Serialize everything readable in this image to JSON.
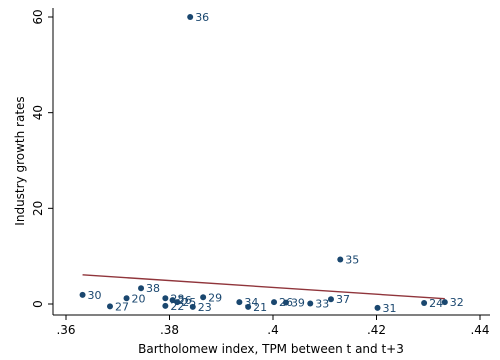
{
  "chart_data": {
    "type": "scatter",
    "title": "",
    "xlabel": "Bartholomew index, TPM  between t and t+3",
    "ylabel": "Industry growth rates",
    "xlim": [
      0.36,
      0.44
    ],
    "ylim": [
      -2,
      62
    ],
    "xticks": [
      0.36,
      0.38,
      0.4,
      0.42,
      0.44
    ],
    "xtick_labels": [
      ".36",
      ".38",
      ".4",
      ".42",
      ".44"
    ],
    "yticks": [
      0,
      20,
      40,
      60
    ],
    "ytick_labels": [
      "0",
      "20",
      "40",
      "60"
    ],
    "grid": false,
    "legend": "none",
    "colors": {
      "points": "#1a476f",
      "fitline": "#90353b",
      "labels": "#1a476f",
      "axis": "#000000"
    },
    "points": [
      {
        "label": "36",
        "x": 0.384,
        "y": 60.0
      },
      {
        "label": "35",
        "x": 0.413,
        "y": 9.3
      },
      {
        "label": "38",
        "x": 0.3745,
        "y": 3.3
      },
      {
        "label": "30",
        "x": 0.3632,
        "y": 1.9
      },
      {
        "label": "20",
        "x": 0.3717,
        "y": 1.2
      },
      {
        "label": "27",
        "x": 0.3685,
        "y": -0.5
      },
      {
        "label": "28",
        "x": 0.3792,
        "y": 1.2
      },
      {
        "label": "26",
        "x": 0.3806,
        "y": 0.8
      },
      {
        "label": "25",
        "x": 0.3815,
        "y": 0.4
      },
      {
        "label": "22",
        "x": 0.3792,
        "y": -0.4
      },
      {
        "label": "23",
        "x": 0.3845,
        "y": -0.6
      },
      {
        "label": "29",
        "x": 0.3865,
        "y": 1.4
      },
      {
        "label": "34",
        "x": 0.3935,
        "y": 0.4
      },
      {
        "label": "21",
        "x": 0.3952,
        "y": -0.6
      },
      {
        "label": "26",
        "x": 0.4002,
        "y": 0.4
      },
      {
        "label": "39",
        "x": 0.4025,
        "y": 0.3
      },
      {
        "label": "33",
        "x": 0.4072,
        "y": 0.1
      },
      {
        "label": "37",
        "x": 0.4112,
        "y": 1.0
      },
      {
        "label": "31",
        "x": 0.4202,
        "y": -0.8
      },
      {
        "label": "24",
        "x": 0.4292,
        "y": 0.2
      },
      {
        "label": "32",
        "x": 0.4332,
        "y": 0.4
      }
    ],
    "fitline": {
      "x": [
        0.3632,
        0.4332
      ],
      "y": [
        6.1,
        1.1
      ]
    }
  }
}
